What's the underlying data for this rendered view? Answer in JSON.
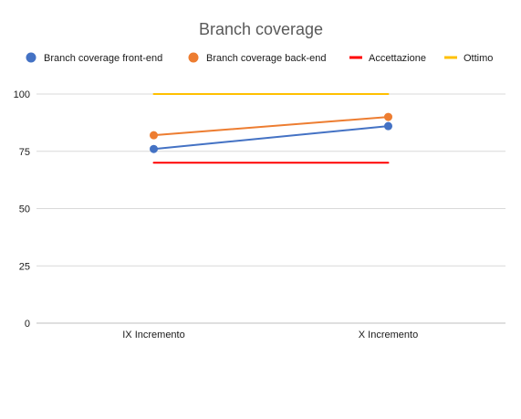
{
  "chart_data": {
    "type": "line",
    "title": "Branch coverage",
    "categories": [
      "IX Incremento",
      "X Incremento"
    ],
    "ylim": [
      0,
      100
    ],
    "yticks": [
      "0",
      "25",
      "50",
      "75",
      "100"
    ],
    "grid": true,
    "legend_position": "top",
    "series": [
      {
        "name": "Branch coverage front-end",
        "values": [
          76,
          86
        ],
        "color": "#4472c4",
        "marker": "circle"
      },
      {
        "name": "Branch coverage back-end",
        "values": [
          82,
          90
        ],
        "color": "#ed7d31",
        "marker": "circle"
      },
      {
        "name": "Accettazione",
        "values": [
          70,
          70
        ],
        "color": "#ff0000",
        "marker": "none"
      },
      {
        "name": "Ottimo",
        "values": [
          100,
          100
        ],
        "color": "#ffc000",
        "marker": "none"
      }
    ]
  }
}
